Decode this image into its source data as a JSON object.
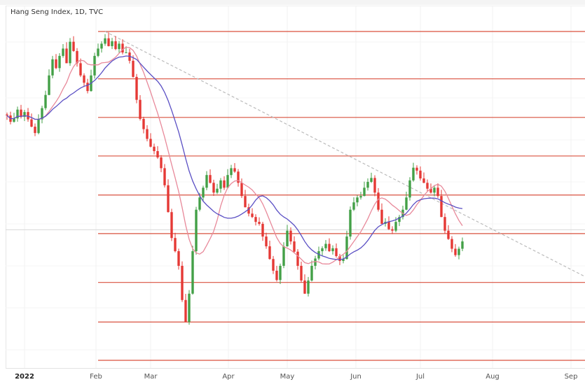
{
  "title": "Hang Seng Index, 1D, TVC",
  "chart_data": {
    "type": "candlestick",
    "title": "Hang Seng Index, 1D, TVC",
    "x_tick_labels": [
      "2022",
      "Feb",
      "Mar",
      "Apr",
      "May",
      "Jun",
      "Jul",
      "Aug",
      "Sep"
    ],
    "close": [
      23180,
      23050,
      23120,
      23300,
      23150,
      23250,
      23100,
      22950,
      22820,
      23100,
      23330,
      23600,
      24000,
      24330,
      24150,
      24400,
      24550,
      24250,
      24690,
      24500,
      24250,
      24000,
      23850,
      23680,
      24000,
      24400,
      24550,
      24650,
      24760,
      24600,
      24700,
      24540,
      24650,
      24470,
      24470,
      24300,
      23970,
      23500,
      23110,
      22900,
      22700,
      22540,
      22450,
      22320,
      22100,
      21750,
      21200,
      20670,
      20400,
      20100,
      19400,
      18950,
      19530,
      20400,
      21250,
      21500,
      21700,
      21960,
      21800,
      21600,
      21680,
      21850,
      21700,
      21960,
      22100,
      22030,
      21800,
      21530,
      21300,
      21170,
      21100,
      21000,
      20960,
      20700,
      20500,
      20240,
      20000,
      19810,
      20100,
      20500,
      20820,
      20600,
      20390,
      20100,
      19800,
      19530,
      19800,
      20100,
      20250,
      20400,
      20460,
      20550,
      20400,
      20460,
      20300,
      20200,
      20240,
      20700,
      21250,
      21400,
      21500,
      21530,
      21700,
      21820,
      21900,
      21600,
      21250,
      20960,
      21000,
      20850,
      20820,
      21000,
      21100,
      21250,
      21500,
      21850,
      22110,
      22050,
      21890,
      21800,
      21680,
      21600,
      21700,
      21530,
      21100,
      20820,
      20650,
      20450,
      20320,
      20450,
      20600
    ],
    "first_open": 23200,
    "moving_averages": [
      {
        "type": "SMA",
        "period": 10,
        "color": "#e8899a"
      },
      {
        "type": "SMA",
        "period": 20,
        "color": "#5a4fc4"
      }
    ],
    "horizontal_levels": [
      24900,
      23930,
      23140,
      22350,
      21550,
      20760,
      19760,
      18950,
      18165
    ],
    "trendline": {
      "start_price": 24900,
      "end_price": 19880,
      "style": "dashed"
    },
    "crosshair_price": 20840,
    "y_range": [
      18000,
      25150
    ],
    "grid": true,
    "colors": {
      "up": "#43a047",
      "down": "#e53935",
      "levels": "#d9503f",
      "trendline": "#bbbbbb"
    }
  }
}
